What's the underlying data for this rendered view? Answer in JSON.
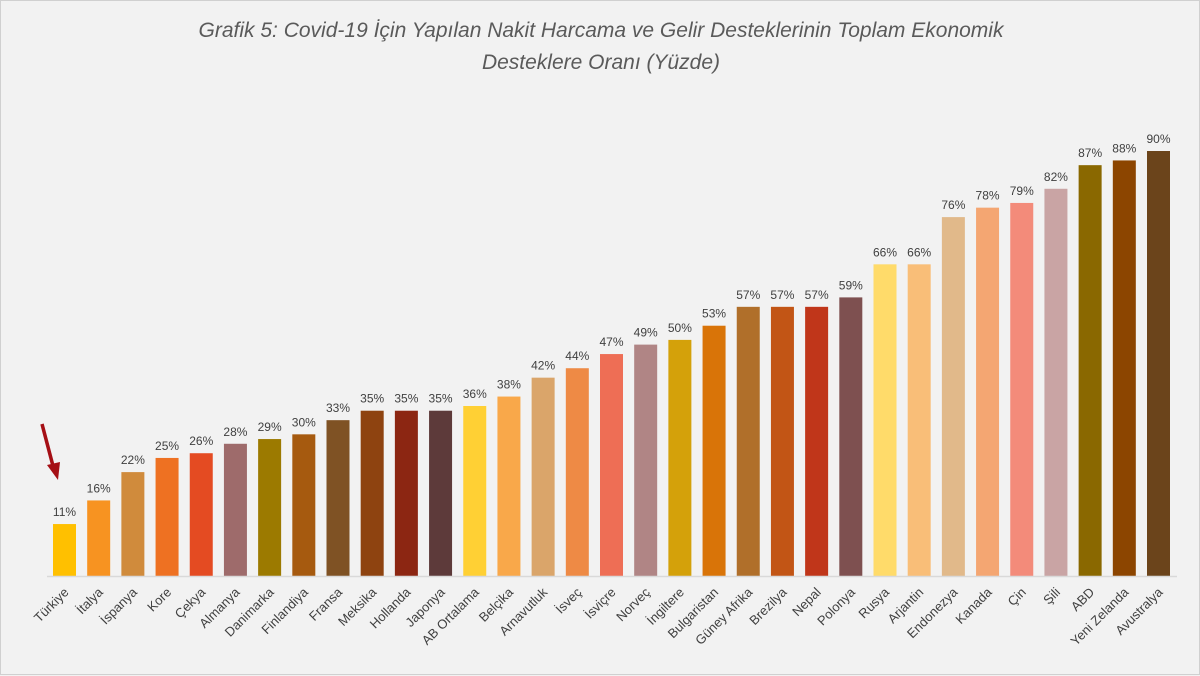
{
  "chart_data": {
    "type": "bar",
    "title_lines": [
      "Grafik 5: Covid-19 İçin Yapılan Nakit Harcama ve Gelir Desteklerinin Toplam Ekonomik",
      "Desteklere Oranı (Yüzde)"
    ],
    "xlabel": "",
    "ylabel": "",
    "ylim": [
      0,
      90
    ],
    "grid": false,
    "value_suffix": "%",
    "highlight": {
      "category": "Türkiye",
      "marker": "red-arrow",
      "color": "#a50f15"
    },
    "categories": [
      "Türkiye",
      "İtalya",
      "İspanya",
      "Kore",
      "Çekya",
      "Almanya",
      "Danimarka",
      "Finlandiya",
      "Fransa",
      "Meksika",
      "Hollanda",
      "Japonya",
      "AB Ortalama",
      "Belçika",
      "Arnavutluk",
      "İsveç",
      "İsviçre",
      "Norveç",
      "İngiltere",
      "Bulgaristan",
      "Güney Afrika",
      "Brezilya",
      "Nepal",
      "Polonya",
      "Rusya",
      "Arjantin",
      "Endonezya",
      "Kanada",
      "Çin",
      "Şili",
      "ABD",
      "Yeni Zelanda",
      "Avustralya"
    ],
    "values": [
      11,
      16,
      22,
      25,
      26,
      28,
      29,
      30,
      33,
      35,
      35,
      35,
      36,
      38,
      42,
      44,
      47,
      49,
      50,
      53,
      57,
      57,
      57,
      59,
      66,
      66,
      76,
      78,
      79,
      82,
      87,
      88,
      90
    ],
    "colors": [
      "#FFC000",
      "#F79321",
      "#D08B3C",
      "#EE7122",
      "#E44B22",
      "#9E6B6B",
      "#9C7A00",
      "#A65A0F",
      "#7F5224",
      "#8E4310",
      "#8C2612",
      "#5D3A3A",
      "#FFD034",
      "#F9A84A",
      "#DAA56A",
      "#EE8A45",
      "#EE6E55",
      "#B08585",
      "#D4A10A",
      "#D97408",
      "#B06F2A",
      "#C25515",
      "#C0361A",
      "#7E5050",
      "#FFDB6A",
      "#F9BE78",
      "#E1B98A",
      "#F4A672",
      "#F38B7A",
      "#C9A4A4",
      "#8A6800",
      "#8C4500",
      "#6B441B"
    ]
  }
}
